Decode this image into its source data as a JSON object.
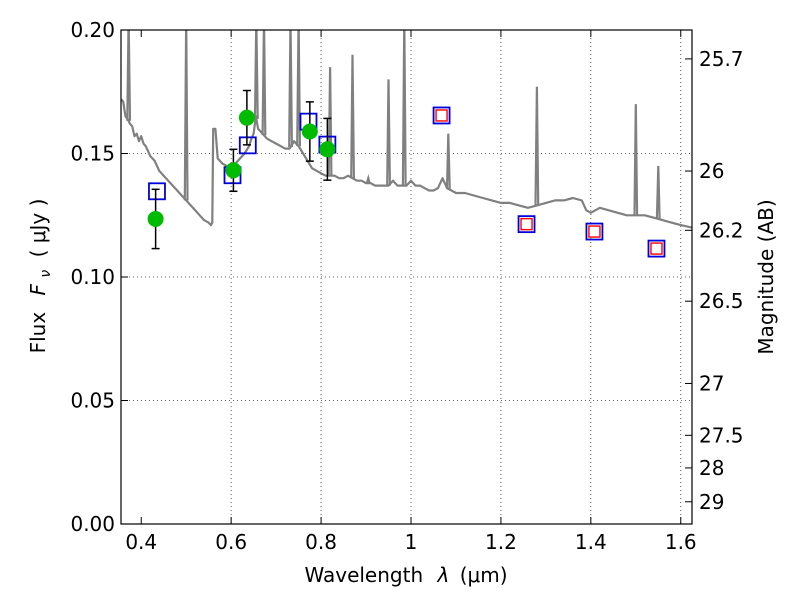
{
  "chart_data": {
    "type": "scatter",
    "xlabel_prefix": "Wavelength",
    "xlabel_symbol": "λ",
    "xlabel_unit": "(μm)",
    "ylabel_prefix": "Flux",
    "ylabel_symbol": "F",
    "ylabel_sub": "ν",
    "ylabel_unit": "( μJy )",
    "y2label": "Magnitude (AB)",
    "xlim": [
      0.355,
      1.625
    ],
    "ylim": [
      0.0,
      0.2
    ],
    "grid": true,
    "x_ticks": [
      0.4,
      0.6,
      0.8,
      1.0,
      1.2,
      1.4,
      1.6
    ],
    "x_tick_labels": [
      "0.4",
      "0.6",
      "0.8",
      "1",
      "1.2",
      "1.4",
      "1.6"
    ],
    "y_ticks": [
      0.0,
      0.05,
      0.1,
      0.15,
      0.2
    ],
    "y_tick_labels": [
      "0.00",
      "0.05",
      "0.10",
      "0.15",
      "0.20"
    ],
    "y2_ticks": [
      {
        "label": "25.7",
        "flux": 0.1883
      },
      {
        "label": "26",
        "flux": 0.1429
      },
      {
        "label": "26.2",
        "flux": 0.1189
      },
      {
        "label": "26.5",
        "flux": 0.0902
      },
      {
        "label": "27",
        "flux": 0.0569
      },
      {
        "label": "27.5",
        "flux": 0.0359
      },
      {
        "label": "28",
        "flux": 0.0227
      },
      {
        "label": "29",
        "flux": 0.009
      }
    ],
    "colors": {
      "model": "#808080",
      "observed": "#00bb00",
      "model_photometry": "#0000dd",
      "predicted_inner": "#ff0000",
      "error_bar": "#000000"
    },
    "series": [
      {
        "kind": "model_spectrum",
        "points": [
          [
            0.355,
            0.172
          ],
          [
            0.36,
            0.171
          ],
          [
            0.365,
            0.165
          ],
          [
            0.37,
            0.164
          ],
          [
            0.375,
            0.162
          ],
          [
            0.38,
            0.161
          ],
          [
            0.385,
            0.157
          ],
          [
            0.39,
            0.158
          ],
          [
            0.395,
            0.155
          ],
          [
            0.4,
            0.157
          ],
          [
            0.405,
            0.154
          ],
          [
            0.41,
            0.153
          ],
          [
            0.415,
            0.151
          ],
          [
            0.42,
            0.149
          ],
          [
            0.43,
            0.147
          ],
          [
            0.44,
            0.143
          ],
          [
            0.45,
            0.141
          ],
          [
            0.46,
            0.139
          ],
          [
            0.47,
            0.137
          ],
          [
            0.48,
            0.135
          ],
          [
            0.49,
            0.133
          ],
          [
            0.5,
            0.131
          ],
          [
            0.51,
            0.129
          ],
          [
            0.52,
            0.127
          ],
          [
            0.53,
            0.125
          ],
          [
            0.54,
            0.123
          ],
          [
            0.55,
            0.122
          ],
          [
            0.555,
            0.121
          ],
          [
            0.558,
            0.122
          ],
          [
            0.56,
            0.16
          ],
          [
            0.565,
            0.16
          ],
          [
            0.57,
            0.148
          ],
          [
            0.58,
            0.146
          ],
          [
            0.59,
            0.145
          ],
          [
            0.6,
            0.144
          ],
          [
            0.61,
            0.146
          ],
          [
            0.62,
            0.148
          ],
          [
            0.63,
            0.15
          ],
          [
            0.64,
            0.153
          ],
          [
            0.645,
            0.156
          ],
          [
            0.65,
            0.158
          ],
          [
            0.655,
            0.165
          ],
          [
            0.66,
            0.16
          ],
          [
            0.67,
            0.158
          ],
          [
            0.68,
            0.156
          ],
          [
            0.69,
            0.155
          ],
          [
            0.7,
            0.154
          ],
          [
            0.71,
            0.153
          ],
          [
            0.72,
            0.152
          ],
          [
            0.73,
            0.152
          ],
          [
            0.74,
            0.155
          ],
          [
            0.75,
            0.153
          ],
          [
            0.76,
            0.15
          ],
          [
            0.77,
            0.147
          ],
          [
            0.78,
            0.144
          ],
          [
            0.79,
            0.143
          ],
          [
            0.8,
            0.142
          ],
          [
            0.81,
            0.141
          ],
          [
            0.82,
            0.141
          ],
          [
            0.83,
            0.141
          ],
          [
            0.84,
            0.14
          ],
          [
            0.85,
            0.14
          ],
          [
            0.86,
            0.141
          ],
          [
            0.87,
            0.14
          ],
          [
            0.88,
            0.139
          ],
          [
            0.89,
            0.139
          ],
          [
            0.9,
            0.138
          ],
          [
            0.91,
            0.138
          ],
          [
            0.92,
            0.137
          ],
          [
            0.93,
            0.137
          ],
          [
            0.94,
            0.137
          ],
          [
            0.95,
            0.137
          ],
          [
            0.96,
            0.139
          ],
          [
            0.97,
            0.137
          ],
          [
            0.98,
            0.137
          ],
          [
            0.99,
            0.137
          ],
          [
            1.0,
            0.139
          ],
          [
            1.01,
            0.137
          ],
          [
            1.02,
            0.137
          ],
          [
            1.03,
            0.136
          ],
          [
            1.04,
            0.135
          ],
          [
            1.05,
            0.135
          ],
          [
            1.06,
            0.136
          ],
          [
            1.07,
            0.14
          ],
          [
            1.08,
            0.136
          ],
          [
            1.09,
            0.135
          ],
          [
            1.1,
            0.134
          ],
          [
            1.12,
            0.134
          ],
          [
            1.14,
            0.133
          ],
          [
            1.16,
            0.132
          ],
          [
            1.18,
            0.131
          ],
          [
            1.2,
            0.13
          ],
          [
            1.22,
            0.13
          ],
          [
            1.24,
            0.129
          ],
          [
            1.26,
            0.128
          ],
          [
            1.28,
            0.129
          ],
          [
            1.3,
            0.13
          ],
          [
            1.32,
            0.131
          ],
          [
            1.34,
            0.131
          ],
          [
            1.36,
            0.132
          ],
          [
            1.38,
            0.131
          ],
          [
            1.39,
            0.127
          ],
          [
            1.4,
            0.126
          ],
          [
            1.42,
            0.128
          ],
          [
            1.44,
            0.127
          ],
          [
            1.46,
            0.126
          ],
          [
            1.48,
            0.125
          ],
          [
            1.5,
            0.125
          ],
          [
            1.52,
            0.125
          ],
          [
            1.54,
            0.124
          ],
          [
            1.56,
            0.123
          ],
          [
            1.58,
            0.122
          ],
          [
            1.6,
            0.121
          ],
          [
            1.625,
            0.12
          ]
        ],
        "emission_lines": [
          [
            0.372,
            0.205
          ],
          [
            0.5,
            0.205
          ],
          [
            0.656,
            0.205
          ],
          [
            0.673,
            0.205
          ],
          [
            0.732,
            0.205
          ],
          [
            0.75,
            0.205
          ],
          [
            0.82,
            0.185
          ],
          [
            0.87,
            0.19
          ],
          [
            0.905,
            0.14
          ],
          [
            0.95,
            0.18
          ],
          [
            0.985,
            0.205
          ],
          [
            1.083,
            0.158
          ],
          [
            1.28,
            0.177
          ],
          [
            1.5,
            0.17
          ],
          [
            1.55,
            0.145
          ]
        ]
      },
      {
        "kind": "observed",
        "points": [
          {
            "x": 0.432,
            "y": 0.1235,
            "err": 0.012
          },
          {
            "x": 0.605,
            "y": 0.1432,
            "err": 0.0085
          },
          {
            "x": 0.635,
            "y": 0.1645,
            "err": 0.011
          },
          {
            "x": 0.775,
            "y": 0.1589,
            "err": 0.012
          },
          {
            "x": 0.814,
            "y": 0.1517,
            "err": 0.0125
          }
        ]
      },
      {
        "kind": "model_photometry",
        "points": [
          {
            "x": 0.435,
            "y": 0.1347
          },
          {
            "x": 0.603,
            "y": 0.1412
          },
          {
            "x": 0.637,
            "y": 0.1533
          },
          {
            "x": 0.772,
            "y": 0.1629
          },
          {
            "x": 0.814,
            "y": 0.1536
          }
        ]
      },
      {
        "kind": "predicted",
        "points": [
          {
            "x": 1.068,
            "y": 0.1654
          },
          {
            "x": 1.257,
            "y": 0.1214
          },
          {
            "x": 1.408,
            "y": 0.1184
          },
          {
            "x": 1.546,
            "y": 0.1115
          }
        ]
      }
    ]
  }
}
